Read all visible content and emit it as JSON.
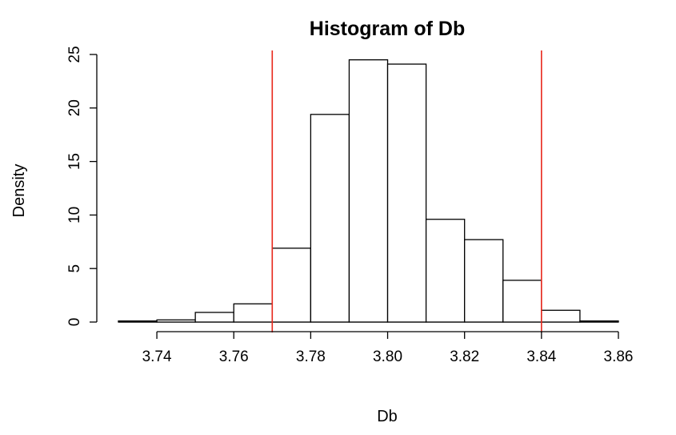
{
  "chart_data": {
    "type": "bar",
    "title": "Histogram of Db",
    "xlabel": "Db",
    "ylabel": "Density",
    "xlim": [
      3.73,
      3.86
    ],
    "ylim": [
      0,
      25
    ],
    "bin_width": 0.01,
    "bins": [
      {
        "start": 3.73,
        "end": 3.74,
        "density": 0.1
      },
      {
        "start": 3.74,
        "end": 3.75,
        "density": 0.2
      },
      {
        "start": 3.75,
        "end": 3.76,
        "density": 0.9
      },
      {
        "start": 3.76,
        "end": 3.77,
        "density": 1.7
      },
      {
        "start": 3.77,
        "end": 3.78,
        "density": 6.9
      },
      {
        "start": 3.78,
        "end": 3.79,
        "density": 19.4
      },
      {
        "start": 3.79,
        "end": 3.8,
        "density": 24.5
      },
      {
        "start": 3.8,
        "end": 3.81,
        "density": 24.1
      },
      {
        "start": 3.81,
        "end": 3.82,
        "density": 9.6
      },
      {
        "start": 3.82,
        "end": 3.83,
        "density": 7.7
      },
      {
        "start": 3.83,
        "end": 3.84,
        "density": 3.9
      },
      {
        "start": 3.84,
        "end": 3.85,
        "density": 1.1
      },
      {
        "start": 3.85,
        "end": 3.86,
        "density": 0.1
      }
    ],
    "x_ticks": [
      {
        "value": 3.74,
        "label": "3.74"
      },
      {
        "value": 3.76,
        "label": "3.76"
      },
      {
        "value": 3.78,
        "label": "3.78"
      },
      {
        "value": 3.8,
        "label": "3.80"
      },
      {
        "value": 3.82,
        "label": "3.82"
      },
      {
        "value": 3.84,
        "label": "3.84"
      },
      {
        "value": 3.86,
        "label": "3.86"
      }
    ],
    "y_ticks": [
      {
        "value": 0,
        "label": "0"
      },
      {
        "value": 5,
        "label": "5"
      },
      {
        "value": 10,
        "label": "10"
      },
      {
        "value": 15,
        "label": "15"
      },
      {
        "value": 20,
        "label": "20"
      },
      {
        "value": 25,
        "label": "25"
      }
    ],
    "reference_lines": [
      3.77,
      3.84
    ],
    "reference_line_color": "#e8271b",
    "bar_fill": "#ffffff",
    "bar_stroke": "#000000",
    "grid": false,
    "legend": "none"
  }
}
